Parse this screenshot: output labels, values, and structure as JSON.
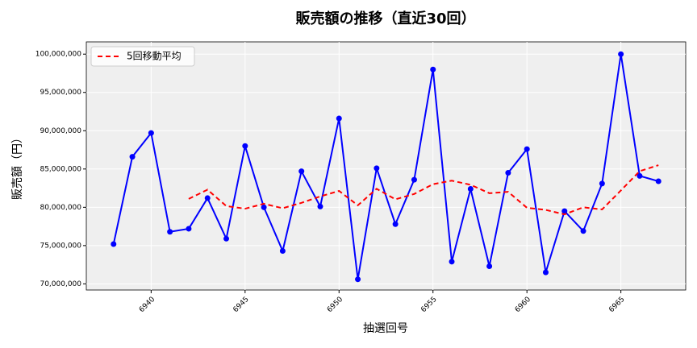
{
  "chart_data": {
    "type": "line",
    "title": "販売額の推移（直近30回）",
    "xlabel": "抽選回号",
    "ylabel": "販売額（円）",
    "x": [
      6938,
      6939,
      6940,
      6941,
      6942,
      6943,
      6944,
      6945,
      6946,
      6947,
      6948,
      6949,
      6950,
      6951,
      6952,
      6953,
      6954,
      6955,
      6956,
      6957,
      6958,
      6959,
      6960,
      6961,
      6962,
      6963,
      6964,
      6965,
      6966,
      6967
    ],
    "series": [
      {
        "color": "#0000ff",
        "marker": true,
        "dashed": false,
        "values": [
          75200000,
          86600000,
          89700000,
          76800000,
          77200000,
          81200000,
          75900000,
          88000000,
          80000000,
          74300000,
          84700000,
          80100000,
          91600000,
          70600000,
          85100000,
          77800000,
          83600000,
          98000000,
          72900000,
          82400000,
          72300000,
          84500000,
          87600000,
          71500000,
          79500000,
          76900000,
          83100000,
          100000000,
          84100000,
          83400000
        ]
      },
      {
        "name": "5回移動平均",
        "color": "#ff0000",
        "marker": false,
        "dashed": true,
        "values": [
          null,
          null,
          null,
          null,
          81100000,
          82300000,
          80160000,
          79820000,
          80460000,
          79880000,
          80580000,
          81420000,
          82140000,
          80260000,
          82420000,
          81040000,
          81740000,
          83020000,
          83480000,
          82940000,
          81840000,
          82020000,
          79940000,
          79660000,
          79080000,
          80000000,
          79720000,
          82200000,
          84720000,
          85500000
        ]
      }
    ],
    "xlim": [
      6936.55,
      6968.45
    ],
    "ylim": [
      69200000,
      101600000
    ],
    "xticks": [
      6940,
      6945,
      6950,
      6955,
      6960,
      6965
    ],
    "yticks": [
      {
        "value": 70000000,
        "label": "70,000,000"
      },
      {
        "value": 75000000,
        "label": "75,000,000"
      },
      {
        "value": 80000000,
        "label": "80,000,000"
      },
      {
        "value": 85000000,
        "label": "85,000,000"
      },
      {
        "value": 90000000,
        "label": "90,000,000"
      },
      {
        "value": 95000000,
        "label": "95,000,000"
      },
      {
        "value": 100000000,
        "label": "100,000,000"
      }
    ],
    "grid": true,
    "legend": "upper left"
  }
}
